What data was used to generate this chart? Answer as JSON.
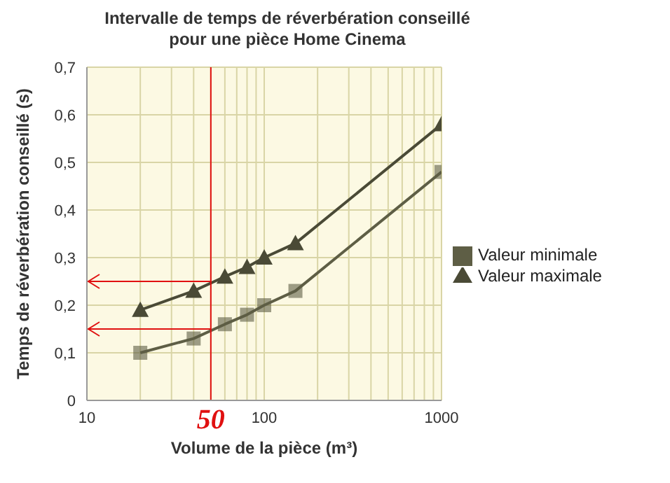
{
  "chart_data": {
    "type": "line",
    "title": "Intervalle de temps de réverbération conseillé pour une pièce Home Cinema",
    "xlabel": "Volume de la pièce (m³)",
    "ylabel": "Temps de réverbération conseillé (s)",
    "x": [
      20,
      40,
      60,
      80,
      100,
      150,
      1000
    ],
    "series": [
      {
        "name": "Valeur minimale",
        "color": "#5e5e45",
        "marker": "square",
        "values": [
          0.1,
          0.13,
          0.16,
          0.18,
          0.2,
          0.23,
          0.48
        ]
      },
      {
        "name": "Valeur maximale",
        "color": "#4a4a36",
        "marker": "triangle",
        "values": [
          0.19,
          0.23,
          0.26,
          0.28,
          0.3,
          0.33,
          0.58
        ]
      }
    ],
    "log": "x",
    "xlim": [
      10,
      1000
    ],
    "xticks": [
      10,
      {
        "value": 20,
        "label": null
      },
      {
        "value": 30,
        "label": null
      },
      {
        "value": 40,
        "label": null
      },
      {
        "value": 50,
        "label": null
      },
      {
        "value": 60,
        "label": null
      },
      {
        "value": 70,
        "label": null
      },
      {
        "value": 80,
        "label": null
      },
      {
        "value": 90,
        "label": null
      },
      100,
      {
        "value": 200,
        "label": null
      },
      {
        "value": 300,
        "label": null
      },
      {
        "value": 400,
        "label": null
      },
      {
        "value": 500,
        "label": null
      },
      {
        "value": 600,
        "label": null
      },
      {
        "value": 700,
        "label": null
      },
      {
        "value": 800,
        "label": null
      },
      {
        "value": 900,
        "label": null
      },
      1000
    ],
    "ylim": [
      0,
      0.7
    ],
    "yticks": [
      0,
      {
        "value": 0.1,
        "label": "0,1"
      },
      {
        "value": 0.2,
        "label": "0,2"
      },
      {
        "value": 0.3,
        "label": "0,3"
      },
      {
        "value": 0.4,
        "label": "0,4"
      },
      {
        "value": 0.5,
        "label": "0,5"
      },
      {
        "value": 0.6,
        "label": "0,6"
      },
      {
        "value": 0.7,
        "label": "0,7"
      }
    ],
    "grid": true,
    "legend": "right",
    "line_style": "solid",
    "ref_lines": [
      {
        "axis": "x",
        "value": 50,
        "label": "50",
        "color": "#e01010"
      },
      {
        "axis": "y",
        "value": 0.15,
        "label": null,
        "color": "#e01010"
      },
      {
        "axis": "y",
        "value": 0.25,
        "label": null,
        "color": "#e01010"
      }
    ]
  }
}
